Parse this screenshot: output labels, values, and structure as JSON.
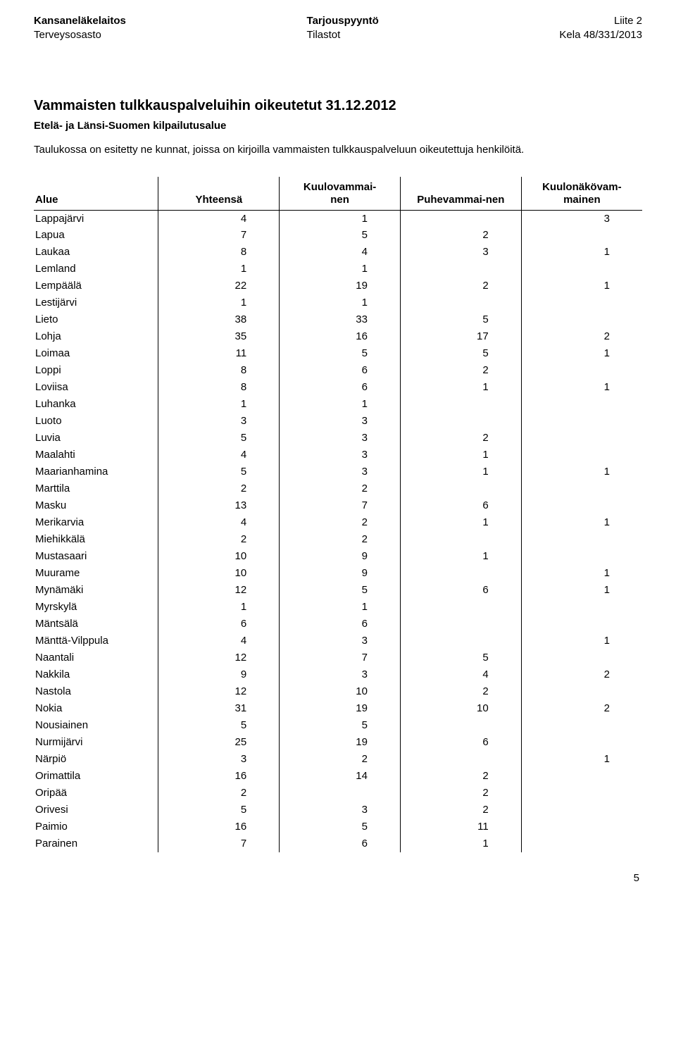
{
  "header": {
    "left_line1": "Kansaneläkelaitos",
    "left_line2": "Terveysosasto",
    "center_line1": "Tarjouspyyntö",
    "center_line2": "Tilastot",
    "right_line1": "Liite 2",
    "right_line2": "Kela 48/331/2013"
  },
  "title": "Vammaisten tulkkauspalveluihin oikeutetut 31.12.2012",
  "subtitle": "Etelä- ja Länsi-Suomen kilpailutusalue",
  "description": "Taulukossa on esitetty ne kunnat, joissa on kirjoilla vammaisten tulkkauspalveluun oikeutettuja henkilöitä.",
  "columns": {
    "c0": "Alue",
    "c1": "Yhteensä",
    "c2_l1": "Kuulovammai-",
    "c2_l2": "nen",
    "c3": "Puhevammai-nen",
    "c4_l1": "Kuulonäkövam-",
    "c4_l2": "mainen"
  },
  "rows": [
    {
      "alue": "Lappajärvi",
      "c1": "4",
      "c2": "1",
      "c3": "",
      "c4": "3"
    },
    {
      "alue": "Lapua",
      "c1": "7",
      "c2": "5",
      "c3": "2",
      "c4": ""
    },
    {
      "alue": "Laukaa",
      "c1": "8",
      "c2": "4",
      "c3": "3",
      "c4": "1"
    },
    {
      "alue": "Lemland",
      "c1": "1",
      "c2": "1",
      "c3": "",
      "c4": ""
    },
    {
      "alue": "Lempäälä",
      "c1": "22",
      "c2": "19",
      "c3": "2",
      "c4": "1"
    },
    {
      "alue": "Lestijärvi",
      "c1": "1",
      "c2": "1",
      "c3": "",
      "c4": ""
    },
    {
      "alue": "Lieto",
      "c1": "38",
      "c2": "33",
      "c3": "5",
      "c4": ""
    },
    {
      "alue": "Lohja",
      "c1": "35",
      "c2": "16",
      "c3": "17",
      "c4": "2"
    },
    {
      "alue": "Loimaa",
      "c1": "11",
      "c2": "5",
      "c3": "5",
      "c4": "1"
    },
    {
      "alue": "Loppi",
      "c1": "8",
      "c2": "6",
      "c3": "2",
      "c4": ""
    },
    {
      "alue": "Loviisa",
      "c1": "8",
      "c2": "6",
      "c3": "1",
      "c4": "1"
    },
    {
      "alue": "Luhanka",
      "c1": "1",
      "c2": "1",
      "c3": "",
      "c4": ""
    },
    {
      "alue": "Luoto",
      "c1": "3",
      "c2": "3",
      "c3": "",
      "c4": ""
    },
    {
      "alue": "Luvia",
      "c1": "5",
      "c2": "3",
      "c3": "2",
      "c4": ""
    },
    {
      "alue": "Maalahti",
      "c1": "4",
      "c2": "3",
      "c3": "1",
      "c4": ""
    },
    {
      "alue": "Maarianhamina",
      "c1": "5",
      "c2": "3",
      "c3": "1",
      "c4": "1"
    },
    {
      "alue": "Marttila",
      "c1": "2",
      "c2": "2",
      "c3": "",
      "c4": ""
    },
    {
      "alue": "Masku",
      "c1": "13",
      "c2": "7",
      "c3": "6",
      "c4": ""
    },
    {
      "alue": "Merikarvia",
      "c1": "4",
      "c2": "2",
      "c3": "1",
      "c4": "1"
    },
    {
      "alue": "Miehikkälä",
      "c1": "2",
      "c2": "2",
      "c3": "",
      "c4": ""
    },
    {
      "alue": "Mustasaari",
      "c1": "10",
      "c2": "9",
      "c3": "1",
      "c4": ""
    },
    {
      "alue": "Muurame",
      "c1": "10",
      "c2": "9",
      "c3": "",
      "c4": "1"
    },
    {
      "alue": "Mynämäki",
      "c1": "12",
      "c2": "5",
      "c3": "6",
      "c4": "1"
    },
    {
      "alue": "Myrskylä",
      "c1": "1",
      "c2": "1",
      "c3": "",
      "c4": ""
    },
    {
      "alue": "Mäntsälä",
      "c1": "6",
      "c2": "6",
      "c3": "",
      "c4": ""
    },
    {
      "alue": "Mänttä-Vilppula",
      "c1": "4",
      "c2": "3",
      "c3": "",
      "c4": "1"
    },
    {
      "alue": "Naantali",
      "c1": "12",
      "c2": "7",
      "c3": "5",
      "c4": ""
    },
    {
      "alue": "Nakkila",
      "c1": "9",
      "c2": "3",
      "c3": "4",
      "c4": "2"
    },
    {
      "alue": "Nastola",
      "c1": "12",
      "c2": "10",
      "c3": "2",
      "c4": ""
    },
    {
      "alue": "Nokia",
      "c1": "31",
      "c2": "19",
      "c3": "10",
      "c4": "2"
    },
    {
      "alue": "Nousiainen",
      "c1": "5",
      "c2": "5",
      "c3": "",
      "c4": ""
    },
    {
      "alue": "Nurmijärvi",
      "c1": "25",
      "c2": "19",
      "c3": "6",
      "c4": ""
    },
    {
      "alue": "Närpiö",
      "c1": "3",
      "c2": "2",
      "c3": "",
      "c4": "1"
    },
    {
      "alue": "Orimattila",
      "c1": "16",
      "c2": "14",
      "c3": "2",
      "c4": ""
    },
    {
      "alue": "Oripää",
      "c1": "2",
      "c2": "",
      "c3": "2",
      "c4": ""
    },
    {
      "alue": "Orivesi",
      "c1": "5",
      "c2": "3",
      "c3": "2",
      "c4": ""
    },
    {
      "alue": "Paimio",
      "c1": "16",
      "c2": "5",
      "c3": "11",
      "c4": ""
    },
    {
      "alue": "Parainen",
      "c1": "7",
      "c2": "6",
      "c3": "1",
      "c4": ""
    }
  ],
  "page_number": "5"
}
